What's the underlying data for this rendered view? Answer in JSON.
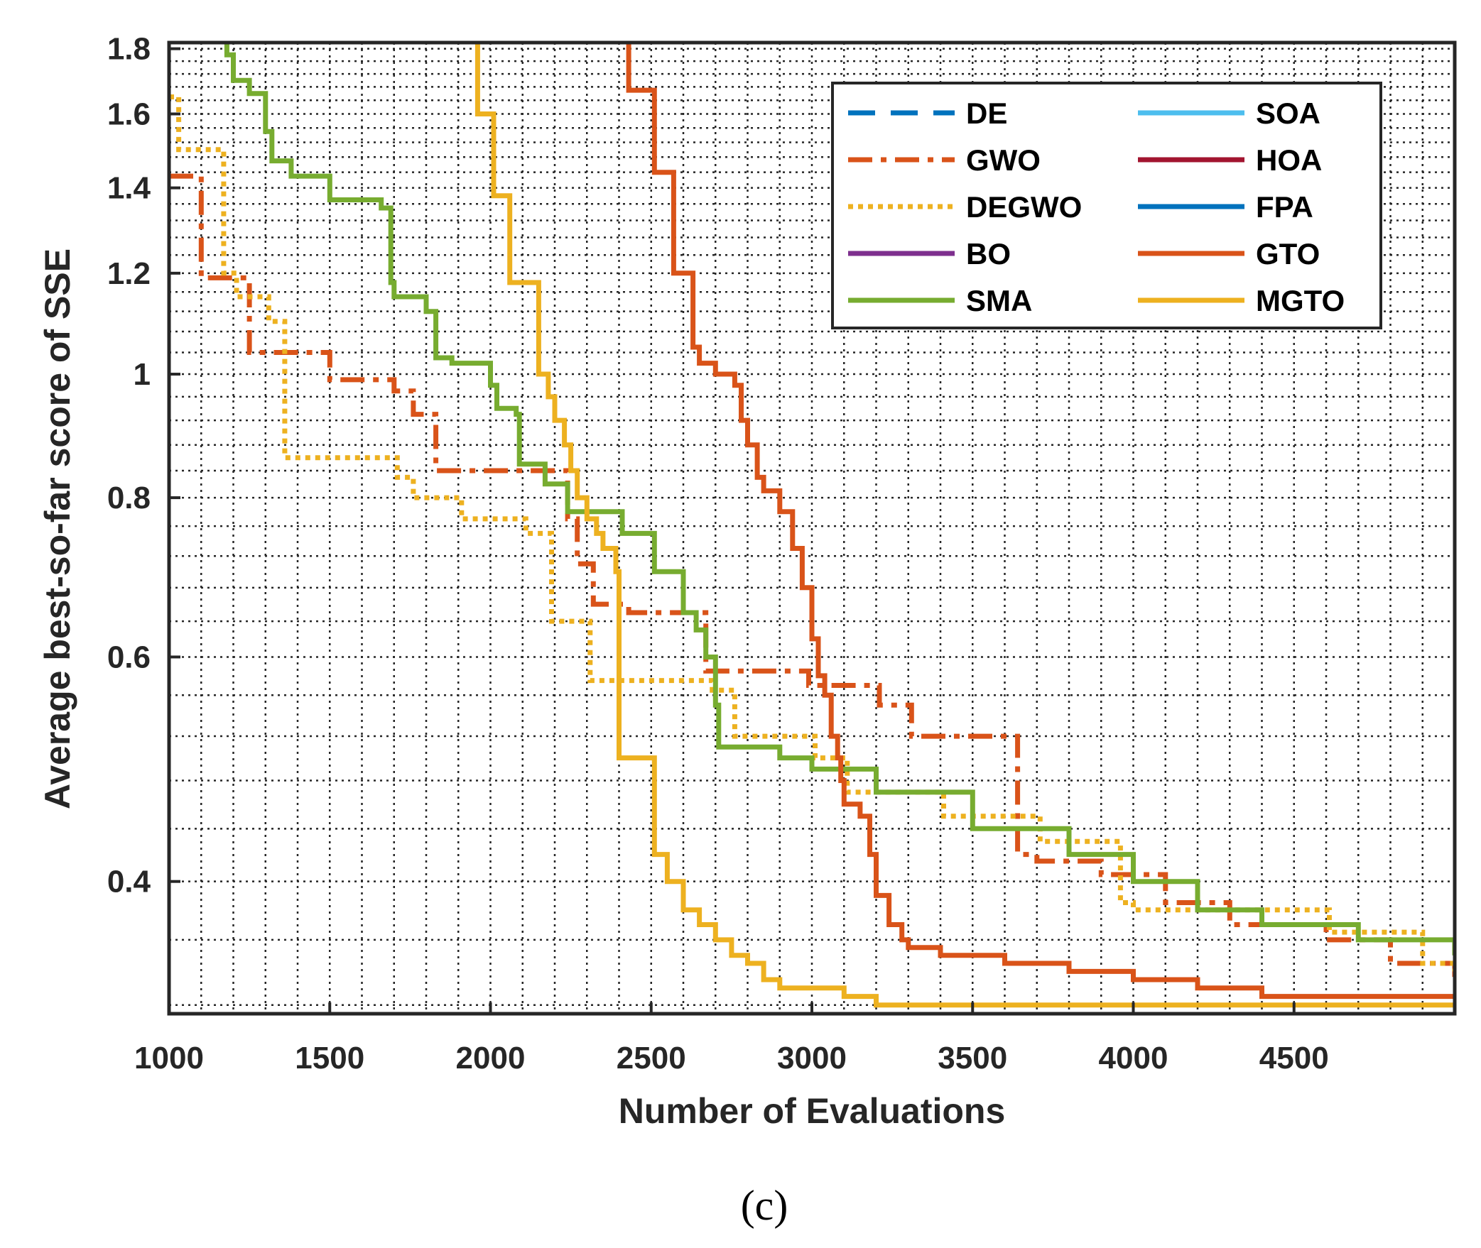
{
  "chart_data": {
    "type": "line",
    "title": "",
    "xlabel": "Number of Evaluations",
    "ylabel": "Average best-so-far score of SSE",
    "xlim": [
      1000,
      5000
    ],
    "ylim": [
      0.315,
      1.82
    ],
    "yscale": "log",
    "grid": true,
    "legend_position": "top-right",
    "xticks": [
      1000,
      1500,
      2000,
      2500,
      3000,
      3500,
      4000,
      4500
    ],
    "xtick_labels": [
      "1000",
      "1500",
      "2000",
      "2500",
      "3000",
      "3500",
      "4000",
      "4500"
    ],
    "yticks": [
      0.4,
      0.6,
      0.8,
      1.0,
      1.2,
      1.4,
      1.6,
      1.8
    ],
    "ytick_labels": [
      "0.4",
      "0.6",
      "0.8",
      "1",
      "1.2",
      "1.4",
      "1.6",
      "1.8"
    ],
    "caption": "(c)",
    "series": [
      {
        "name": "DE",
        "color": "#0072BD",
        "style": "dashed",
        "x": [],
        "y": []
      },
      {
        "name": "GWO",
        "color": "#D95319",
        "style": "dashdot",
        "x": [
          1000,
          1090,
          1100,
          1240,
          1250,
          1490,
          1500,
          1690,
          1700,
          1750,
          1760,
          1820,
          1830,
          2230,
          2240,
          2260,
          2270,
          2310,
          2320,
          2420,
          2430,
          2660,
          2670,
          2700,
          2710,
          2980,
          2990,
          3200,
          3210,
          3300,
          3310,
          3630,
          3640,
          3700,
          3900,
          4100,
          4300,
          4600,
          4800,
          5000
        ],
        "y": [
          1.43,
          1.43,
          1.19,
          1.19,
          1.04,
          1.04,
          0.99,
          0.99,
          0.97,
          0.97,
          0.93,
          0.93,
          0.84,
          0.84,
          0.77,
          0.77,
          0.71,
          0.71,
          0.66,
          0.66,
          0.65,
          0.65,
          0.585,
          0.585,
          0.585,
          0.585,
          0.57,
          0.57,
          0.55,
          0.55,
          0.52,
          0.52,
          0.42,
          0.415,
          0.405,
          0.385,
          0.37,
          0.36,
          0.345,
          0.335
        ]
      },
      {
        "name": "DEGWO",
        "color": "#EDB120",
        "style": "dotted",
        "x": [
          1000,
          1020,
          1030,
          1160,
          1170,
          1200,
          1210,
          1300,
          1310,
          1350,
          1360,
          1700,
          1710,
          1750,
          1760,
          1900,
          1910,
          2100,
          2110,
          2180,
          2190,
          2300,
          2310,
          2680,
          2690,
          2750,
          2760,
          3000,
          3010,
          3100,
          3110,
          3400,
          3410,
          3700,
          3710,
          3950,
          3960,
          4000,
          4600,
          4610,
          4900,
          5000
        ],
        "y": [
          1.65,
          1.65,
          1.5,
          1.5,
          1.2,
          1.2,
          1.15,
          1.15,
          1.1,
          1.1,
          0.86,
          0.86,
          0.83,
          0.83,
          0.8,
          0.8,
          0.77,
          0.77,
          0.75,
          0.75,
          0.64,
          0.64,
          0.575,
          0.575,
          0.565,
          0.565,
          0.52,
          0.52,
          0.5,
          0.5,
          0.47,
          0.47,
          0.45,
          0.45,
          0.43,
          0.43,
          0.385,
          0.38,
          0.38,
          0.365,
          0.345,
          0.34
        ]
      },
      {
        "name": "BO",
        "color": "#7E2F8E",
        "style": "solid",
        "x": [],
        "y": []
      },
      {
        "name": "SMA",
        "color": "#77AC30",
        "style": "solid",
        "x": [
          1150,
          1180,
          1200,
          1250,
          1300,
          1320,
          1380,
          1500,
          1660,
          1690,
          1700,
          1800,
          1830,
          1880,
          2000,
          2020,
          2080,
          2090,
          2160,
          2170,
          2230,
          2240,
          2400,
          2410,
          2500,
          2510,
          2580,
          2600,
          2640,
          2670,
          2700,
          2710,
          2900,
          3000,
          3200,
          3500,
          3800,
          4000,
          4200,
          4400,
          4700,
          5000
        ],
        "y": [
          1.85,
          1.78,
          1.7,
          1.66,
          1.55,
          1.47,
          1.43,
          1.37,
          1.35,
          1.18,
          1.15,
          1.12,
          1.03,
          1.02,
          0.98,
          0.94,
          0.93,
          0.85,
          0.85,
          0.82,
          0.82,
          0.78,
          0.78,
          0.75,
          0.75,
          0.7,
          0.7,
          0.65,
          0.63,
          0.6,
          0.55,
          0.51,
          0.5,
          0.49,
          0.47,
          0.44,
          0.42,
          0.4,
          0.38,
          0.37,
          0.36,
          0.35
        ]
      },
      {
        "name": "SOA",
        "color": "#4DBEEE",
        "style": "solid",
        "x": [],
        "y": []
      },
      {
        "name": "HOA",
        "color": "#A2142F",
        "style": "solid",
        "x": [],
        "y": []
      },
      {
        "name": "FPA",
        "color": "#0072BD",
        "style": "solid",
        "x": [],
        "y": []
      },
      {
        "name": "GTO",
        "color": "#D95319",
        "style": "solid",
        "x": [
          2420,
          2430,
          2500,
          2510,
          2560,
          2570,
          2620,
          2630,
          2650,
          2700,
          2760,
          2780,
          2800,
          2830,
          2850,
          2900,
          2940,
          2970,
          3000,
          3020,
          3040,
          3060,
          3080,
          3090,
          3100,
          3150,
          3180,
          3200,
          3240,
          3280,
          3300,
          3400,
          3600,
          3800,
          4000,
          4200,
          4400,
          4600,
          5000
        ],
        "y": [
          1.9,
          1.67,
          1.67,
          1.44,
          1.44,
          1.2,
          1.2,
          1.05,
          1.02,
          1.0,
          0.98,
          0.92,
          0.88,
          0.83,
          0.81,
          0.78,
          0.73,
          0.68,
          0.62,
          0.58,
          0.56,
          0.52,
          0.5,
          0.48,
          0.46,
          0.45,
          0.42,
          0.39,
          0.37,
          0.36,
          0.355,
          0.35,
          0.345,
          0.34,
          0.335,
          0.33,
          0.325,
          0.325,
          0.325
        ]
      },
      {
        "name": "MGTO",
        "color": "#EDB120",
        "style": "solid",
        "x": [
          1950,
          1960,
          2000,
          2010,
          2050,
          2060,
          2140,
          2150,
          2180,
          2200,
          2230,
          2250,
          2270,
          2300,
          2330,
          2350,
          2390,
          2400,
          2500,
          2510,
          2550,
          2600,
          2650,
          2700,
          2750,
          2800,
          2850,
          2900,
          3000,
          3100,
          3200,
          3400,
          3600,
          3800,
          4000,
          4500,
          5000
        ],
        "y": [
          1.85,
          1.6,
          1.6,
          1.38,
          1.38,
          1.18,
          1.18,
          1.0,
          0.96,
          0.92,
          0.88,
          0.84,
          0.8,
          0.77,
          0.75,
          0.73,
          0.7,
          0.5,
          0.5,
          0.42,
          0.4,
          0.38,
          0.37,
          0.36,
          0.35,
          0.345,
          0.335,
          0.33,
          0.33,
          0.325,
          0.32,
          0.32,
          0.32,
          0.32,
          0.32,
          0.32,
          0.32
        ]
      }
    ]
  }
}
